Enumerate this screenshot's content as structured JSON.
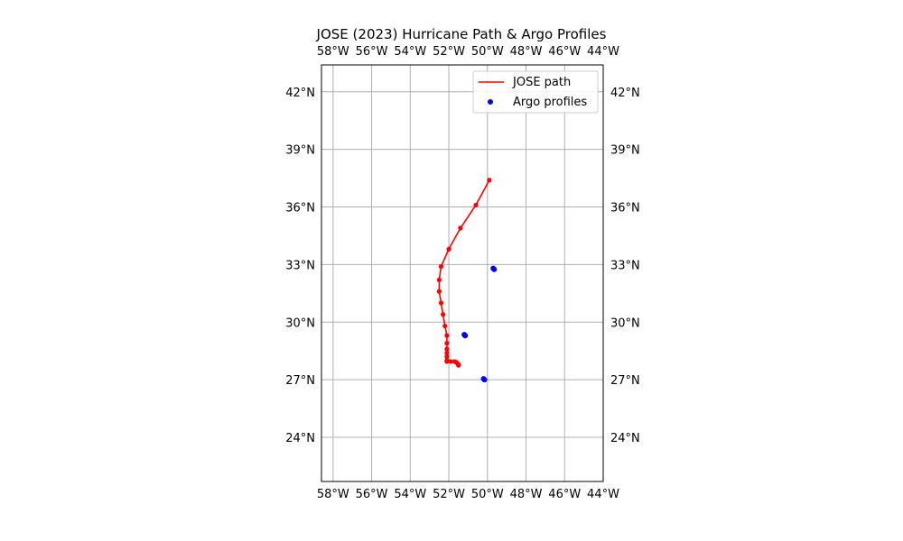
{
  "chart_data": {
    "type": "map",
    "title": "JOSE (2023) Hurricane Path & Argo Profiles",
    "xlim": [
      -58.6,
      -44.0
    ],
    "ylim": [
      21.7,
      43.4
    ],
    "x_ticks": [
      -58,
      -56,
      -54,
      -52,
      -50,
      -48,
      -46,
      -44
    ],
    "x_tick_labels": [
      "58°W",
      "56°W",
      "54°W",
      "52°W",
      "50°W",
      "48°W",
      "46°W",
      "44°W"
    ],
    "y_ticks": [
      24,
      27,
      30,
      33,
      36,
      39,
      42
    ],
    "y_tick_labels": [
      "24°N",
      "27°N",
      "30°N",
      "33°N",
      "36°N",
      "39°N",
      "42°N"
    ],
    "grid": true,
    "legend_position": "top-right",
    "colors": {
      "path": "#ff0000",
      "argo": "#0000ff",
      "grid": "#b0b0b0"
    },
    "series": [
      {
        "name": "JOSE path",
        "kind": "line",
        "lon": [
          -49.9,
          -50.6,
          -51.4,
          -52.0,
          -52.4,
          -52.5,
          -52.5,
          -52.4,
          -52.3,
          -52.2,
          -52.1,
          -52.1,
          -52.1,
          -52.1,
          -52.1,
          -52.1,
          -52.1,
          -51.9,
          -51.7,
          -51.6,
          -51.5,
          -51.5
        ],
        "lat": [
          37.4,
          36.1,
          34.9,
          33.8,
          32.9,
          32.2,
          31.6,
          31.0,
          30.4,
          29.8,
          29.3,
          28.9,
          28.6,
          28.4,
          28.2,
          28.0,
          27.95,
          27.95,
          27.95,
          27.9,
          27.8,
          27.75
        ]
      },
      {
        "name": "Argo profiles",
        "kind": "scatter",
        "lon": [
          -49.7,
          -49.65,
          -51.2,
          -51.15,
          -50.2,
          -50.15
        ],
        "lat": [
          32.8,
          32.75,
          29.35,
          29.3,
          27.05,
          27.0
        ]
      }
    ]
  }
}
